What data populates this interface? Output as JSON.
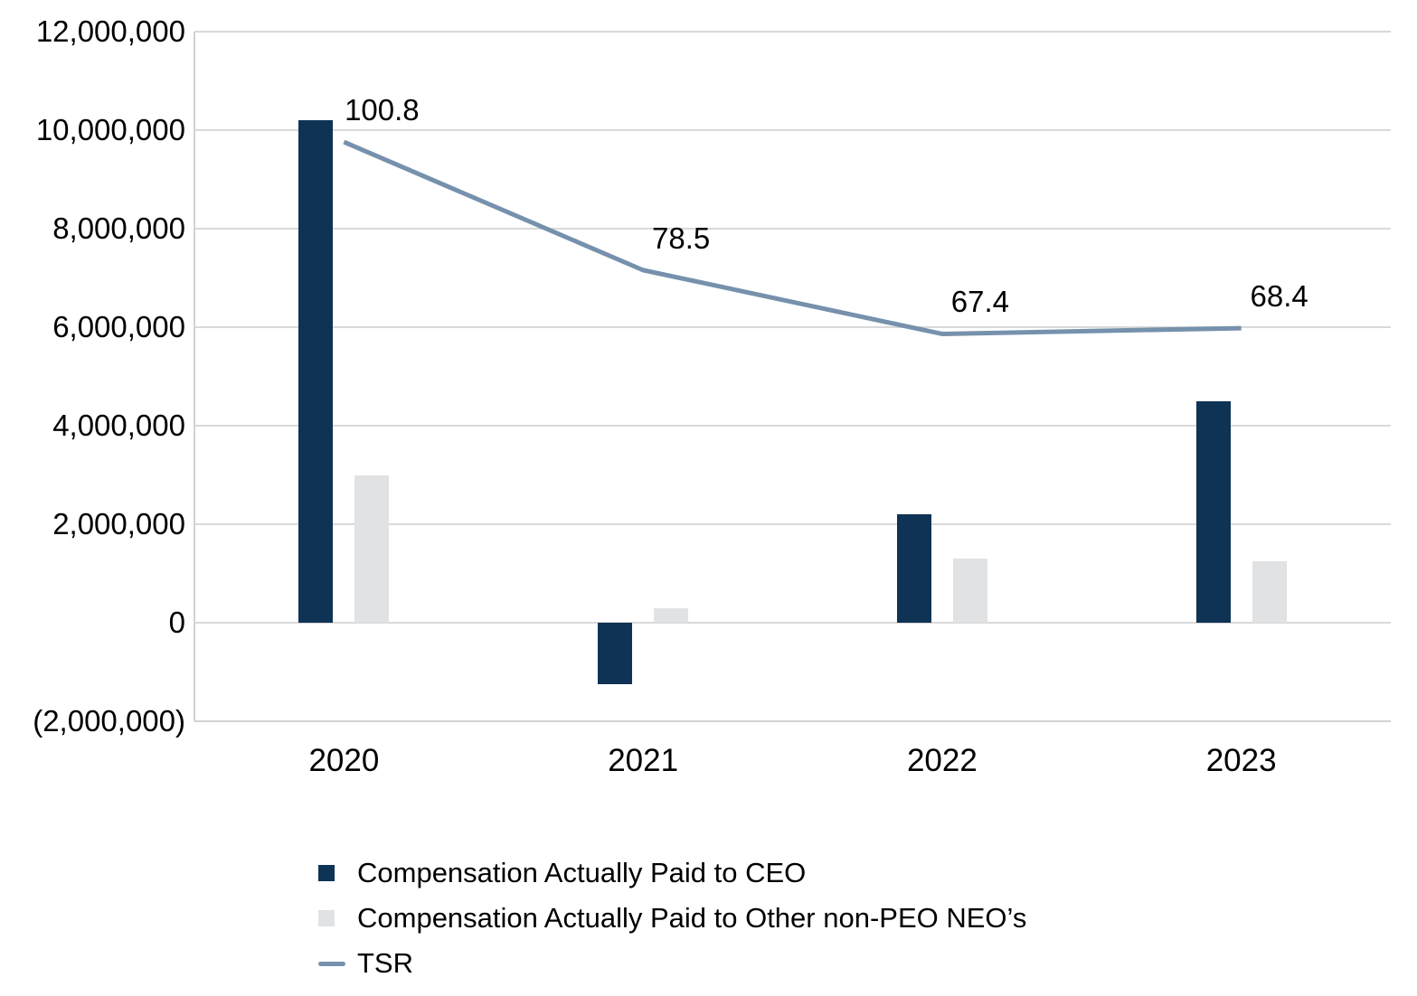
{
  "chart_data": {
    "type": "combo-bar-line",
    "title": "",
    "categories": [
      "2020",
      "2021",
      "2022",
      "2023"
    ],
    "series": [
      {
        "name": "Compensation Actually Paid to CEO",
        "type": "bar",
        "axis": "primary",
        "color": "#0e3355",
        "values": [
          10200000,
          -1250000,
          2200000,
          4500000
        ]
      },
      {
        "name": "Compensation Actually Paid to Other non-PEO NEO’s",
        "type": "bar",
        "axis": "primary",
        "color": "#e1e2e4",
        "values": [
          3000000,
          300000,
          1300000,
          1250000
        ]
      },
      {
        "name": "TSR",
        "type": "line",
        "axis": "secondary",
        "color": "#7691ac",
        "values": [
          100.8,
          78.5,
          67.4,
          68.4
        ],
        "data_labels": [
          "100.8",
          "78.5",
          "67.4",
          "68.4"
        ]
      }
    ],
    "y_axis": {
      "min": -2000000,
      "max": 12000000,
      "step": 2000000,
      "tick_labels": [
        "(2,000,000)",
        "0",
        "2,000,000",
        "4,000,000",
        "6,000,000",
        "8,000,000",
        "10,000,000",
        "12,000,000"
      ]
    },
    "secondary_y_axis": {
      "min": 0,
      "max": 120,
      "labels_visible": false
    },
    "grid": true,
    "legend_position": "bottom-left",
    "colors": {
      "gridline": "#d9d9d9",
      "axis_border": "#d2d2d2",
      "text": "#000000",
      "background": "#ffffff"
    }
  }
}
